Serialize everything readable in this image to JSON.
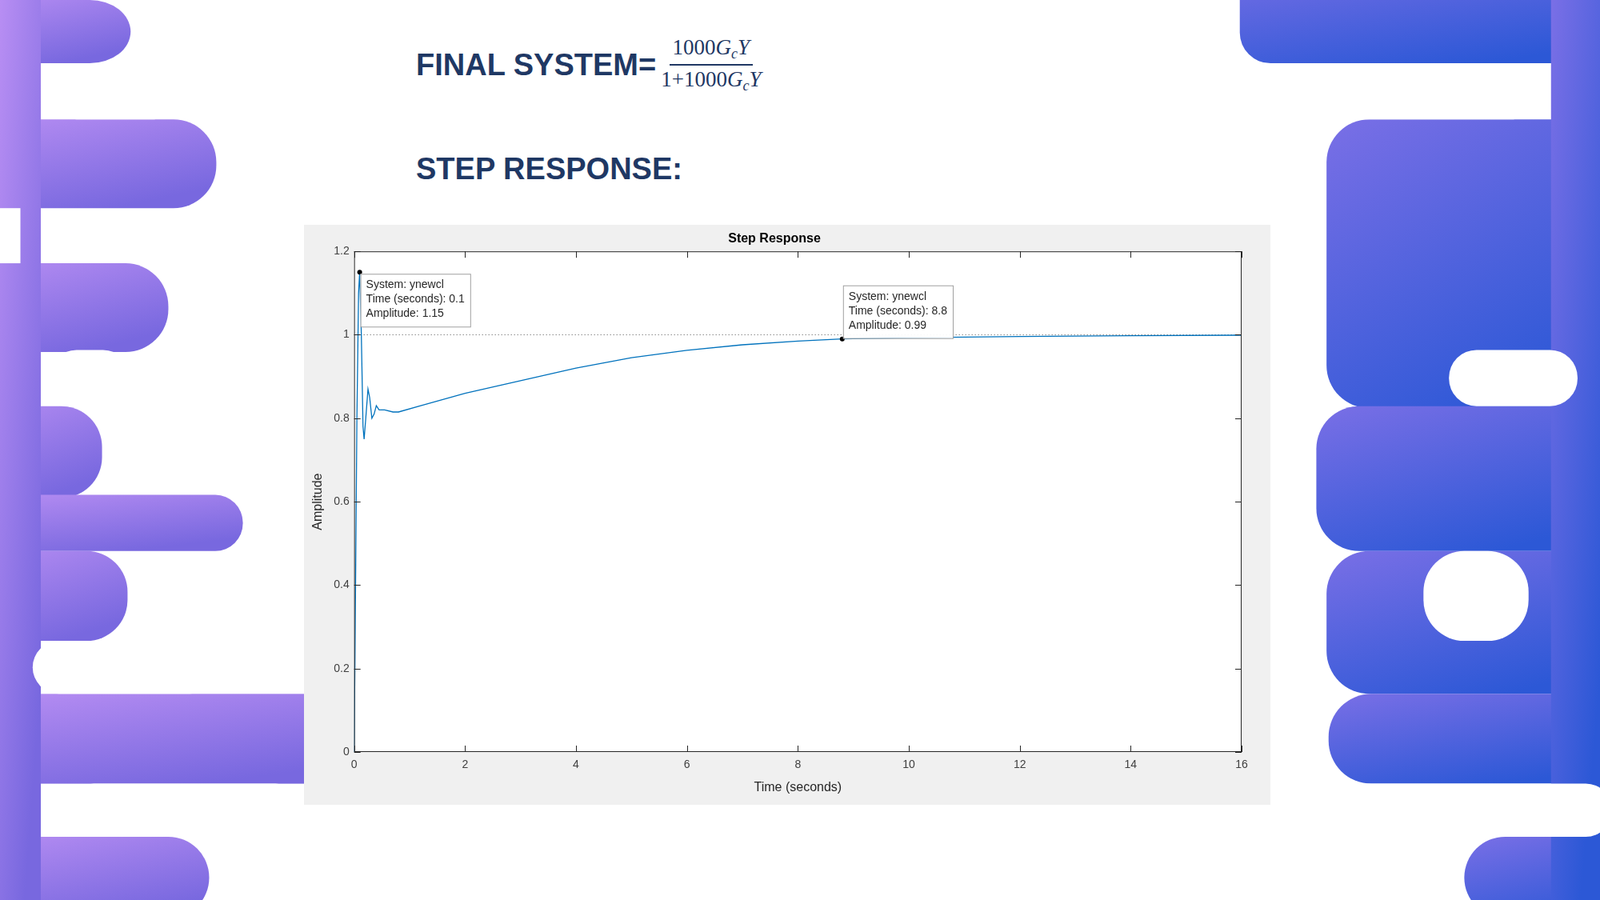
{
  "slide": {
    "heading": "FINAL SYSTEM=",
    "numerator": [
      {
        "text": "1000",
        "style": "normal"
      },
      {
        "text": "G",
        "style": "italic"
      },
      {
        "text": "c",
        "style": "sub"
      },
      {
        "text": "Y",
        "style": "italic"
      }
    ],
    "denominator": [
      {
        "text": "1+1000",
        "style": "normal"
      },
      {
        "text": "G",
        "style": "italic"
      },
      {
        "text": "c",
        "style": "sub"
      },
      {
        "text": "Y",
        "style": "italic"
      }
    ],
    "subheading": "STEP RESPONSE:"
  },
  "chart_data": {
    "type": "line",
    "title": "Step Response",
    "x_label": "Time (seconds)",
    "y_label": "Amplitude",
    "x": [
      0,
      0.02,
      0.05,
      0.08,
      0.1,
      0.13,
      0.16,
      0.18,
      0.21,
      0.25,
      0.28,
      0.32,
      0.36,
      0.4,
      0.45,
      0.55,
      0.7,
      0.8,
      1.2,
      2,
      3,
      4,
      5,
      6,
      7,
      8,
      8.8,
      10,
      12,
      14,
      16
    ],
    "series": [
      {
        "name": "ynewcl",
        "color": "#0072bd",
        "line_style": "solid",
        "values": [
          0,
          0.3,
          0.8,
          1.1,
          1.15,
          1.0,
          0.78,
          0.75,
          0.8,
          0.87,
          0.85,
          0.8,
          0.81,
          0.83,
          0.82,
          0.82,
          0.815,
          0.815,
          0.83,
          0.86,
          0.89,
          0.92,
          0.945,
          0.963,
          0.976,
          0.985,
          0.99,
          0.993,
          0.996,
          0.998,
          0.999
        ]
      }
    ],
    "final_value": {
      "value": 1,
      "line_style": "dotted"
    },
    "xlim": [
      0,
      16
    ],
    "xticks": [
      0,
      2,
      4,
      6,
      8,
      10,
      12,
      14,
      16
    ],
    "ylim": [
      0,
      1.2
    ],
    "yticks": [
      0,
      0.2,
      0.4,
      0.6,
      0.8,
      1,
      1.2
    ],
    "grid": false,
    "annotations": [
      {
        "x": 0.1,
        "y": 1.15,
        "lines": [
          "System: ynewcl",
          "Time (seconds): 0.1",
          "Amplitude: 1.15"
        ]
      },
      {
        "x": 8.8,
        "y": 0.99,
        "lines": [
          "System: ynewcl",
          "Time (seconds): 8.8",
          "Amplitude: 0.99"
        ]
      }
    ]
  }
}
